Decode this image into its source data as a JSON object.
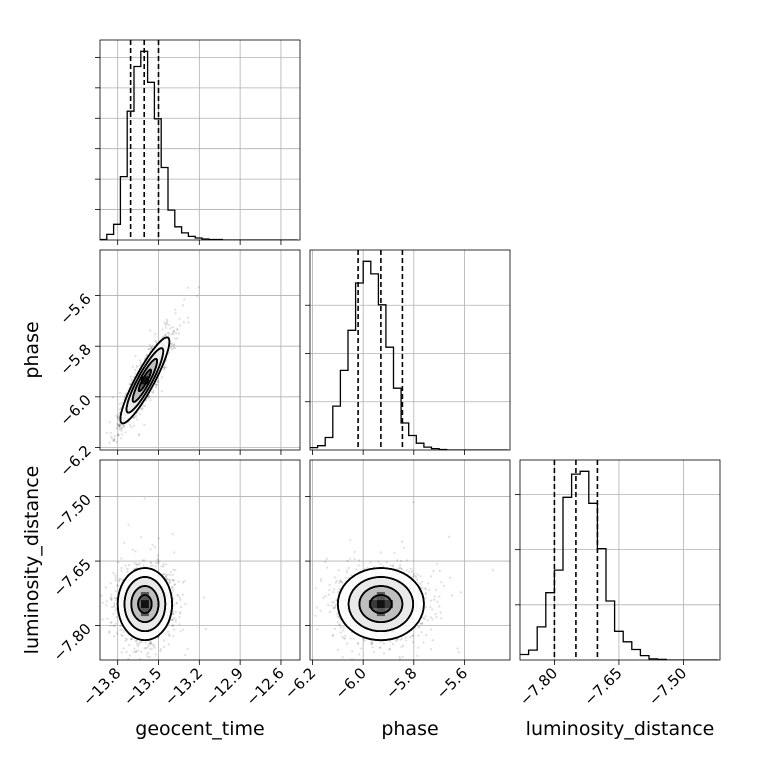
{
  "chart_data": {
    "type": "corner",
    "parameters": [
      "geocent_time",
      "phase",
      "luminosity_distance"
    ],
    "axes": {
      "geocent_time": {
        "label": "geocent_time",
        "range": [
          -13.93,
          -12.46
        ],
        "ticks": [
          -13.8,
          -13.5,
          -13.2,
          -12.9,
          -12.6
        ],
        "tick_labels": [
          "−13.8",
          "−13.5",
          "−13.2",
          "−12.9",
          "−12.6"
        ]
      },
      "phase": {
        "label": "phase",
        "range": [
          -6.21,
          -5.42
        ],
        "ticks": [
          -6.2,
          -6.0,
          -5.8,
          -5.6
        ],
        "tick_labels": [
          "−6.2",
          "−6.0",
          "−5.8",
          "−5.6"
        ]
      },
      "luminosity_distance": {
        "label": "luminosity_distance",
        "range": [
          -7.88,
          -7.415
        ],
        "ticks": [
          -7.8,
          -7.65,
          -7.5
        ],
        "tick_labels": [
          "−7.80",
          "−7.65",
          "−7.50"
        ]
      }
    },
    "histograms": [
      {
        "parameter": "geocent_time",
        "quantiles": [
          -13.705,
          -13.605,
          -13.5
        ],
        "bins": [
          -13.93,
          -13.88,
          -13.83,
          -13.78,
          -13.73,
          -13.68,
          -13.63,
          -13.58,
          -13.53,
          -13.48,
          -13.43,
          -13.38,
          -13.33,
          -13.28,
          -13.23,
          -13.18,
          -13.13,
          -13.08,
          -13.03,
          -12.98,
          -12.93,
          -12.88,
          -12.83,
          -12.78,
          -12.73,
          -12.68,
          -12.63,
          -12.58,
          -12.53,
          -12.48
        ],
        "counts": [
          1,
          11,
          31,
          125,
          254,
          342,
          372,
          311,
          239,
          143,
          59,
          26,
          14,
          7,
          4,
          2,
          1,
          1,
          0,
          0,
          0,
          0,
          0,
          0,
          0,
          0,
          0,
          0,
          0
        ],
        "y_ticks": [
          60,
          120,
          180,
          240,
          300,
          360
        ]
      },
      {
        "parameter": "phase",
        "quantiles": [
          -6.02,
          -5.93,
          -5.845
        ],
        "bins": [
          -6.21,
          -6.18,
          -6.15,
          -6.12,
          -6.09,
          -6.06,
          -6.03,
          -6.0,
          -5.97,
          -5.94,
          -5.91,
          -5.88,
          -5.85,
          -5.82,
          -5.79,
          -5.76,
          -5.73,
          -5.7,
          -5.67,
          -5.64,
          -5.61,
          -5.58,
          -5.55,
          -5.52,
          -5.49,
          -5.46,
          -5.43
        ],
        "counts": [
          5,
          9,
          26,
          91,
          165,
          248,
          346,
          391,
          365,
          301,
          213,
          128,
          56,
          30,
          14,
          6,
          3,
          1,
          0,
          0,
          0,
          0,
          0,
          0,
          0,
          0
        ],
        "y_ticks": [
          100,
          200,
          300
        ]
      },
      {
        "parameter": "luminosity_distance",
        "quantiles": [
          -7.8,
          -7.75,
          -7.7
        ],
        "bins": [
          -7.88,
          -7.86,
          -7.84,
          -7.82,
          -7.8,
          -7.78,
          -7.76,
          -7.74,
          -7.72,
          -7.7,
          -7.68,
          -7.66,
          -7.64,
          -7.62,
          -7.6,
          -7.58,
          -7.56,
          -7.54,
          -7.52,
          -7.5,
          -7.48,
          -7.46,
          -7.44,
          -7.42
        ],
        "counts": [
          10,
          18,
          60,
          122,
          163,
          295,
          337,
          342,
          284,
          202,
          107,
          52,
          33,
          19,
          8,
          2,
          1,
          0,
          0,
          0,
          0,
          0,
          0
        ],
        "y_ticks": [
          100,
          200,
          300
        ]
      }
    ],
    "joint_distributions": [
      {
        "x": "geocent_time",
        "y": "phase",
        "mean": [
          -13.6,
          -5.935
        ],
        "sd": [
          0.09,
          0.085
        ],
        "correlation": 0.9,
        "contour_levels_sigma": [
          0.5,
          1,
          1.5,
          2
        ]
      },
      {
        "x": "geocent_time",
        "y": "luminosity_distance",
        "mean": [
          -13.6,
          -7.75
        ],
        "sd": [
          0.1,
          0.042
        ],
        "correlation": 0.0,
        "contour_levels_sigma": [
          0.5,
          1,
          1.5,
          2
        ]
      },
      {
        "x": "phase",
        "y": "luminosity_distance",
        "mean": [
          -5.93,
          -7.75
        ],
        "sd": [
          0.085,
          0.042
        ],
        "correlation": 0.0,
        "contour_levels_sigma": [
          0.5,
          1,
          1.5,
          2
        ]
      }
    ],
    "grid": true
  }
}
